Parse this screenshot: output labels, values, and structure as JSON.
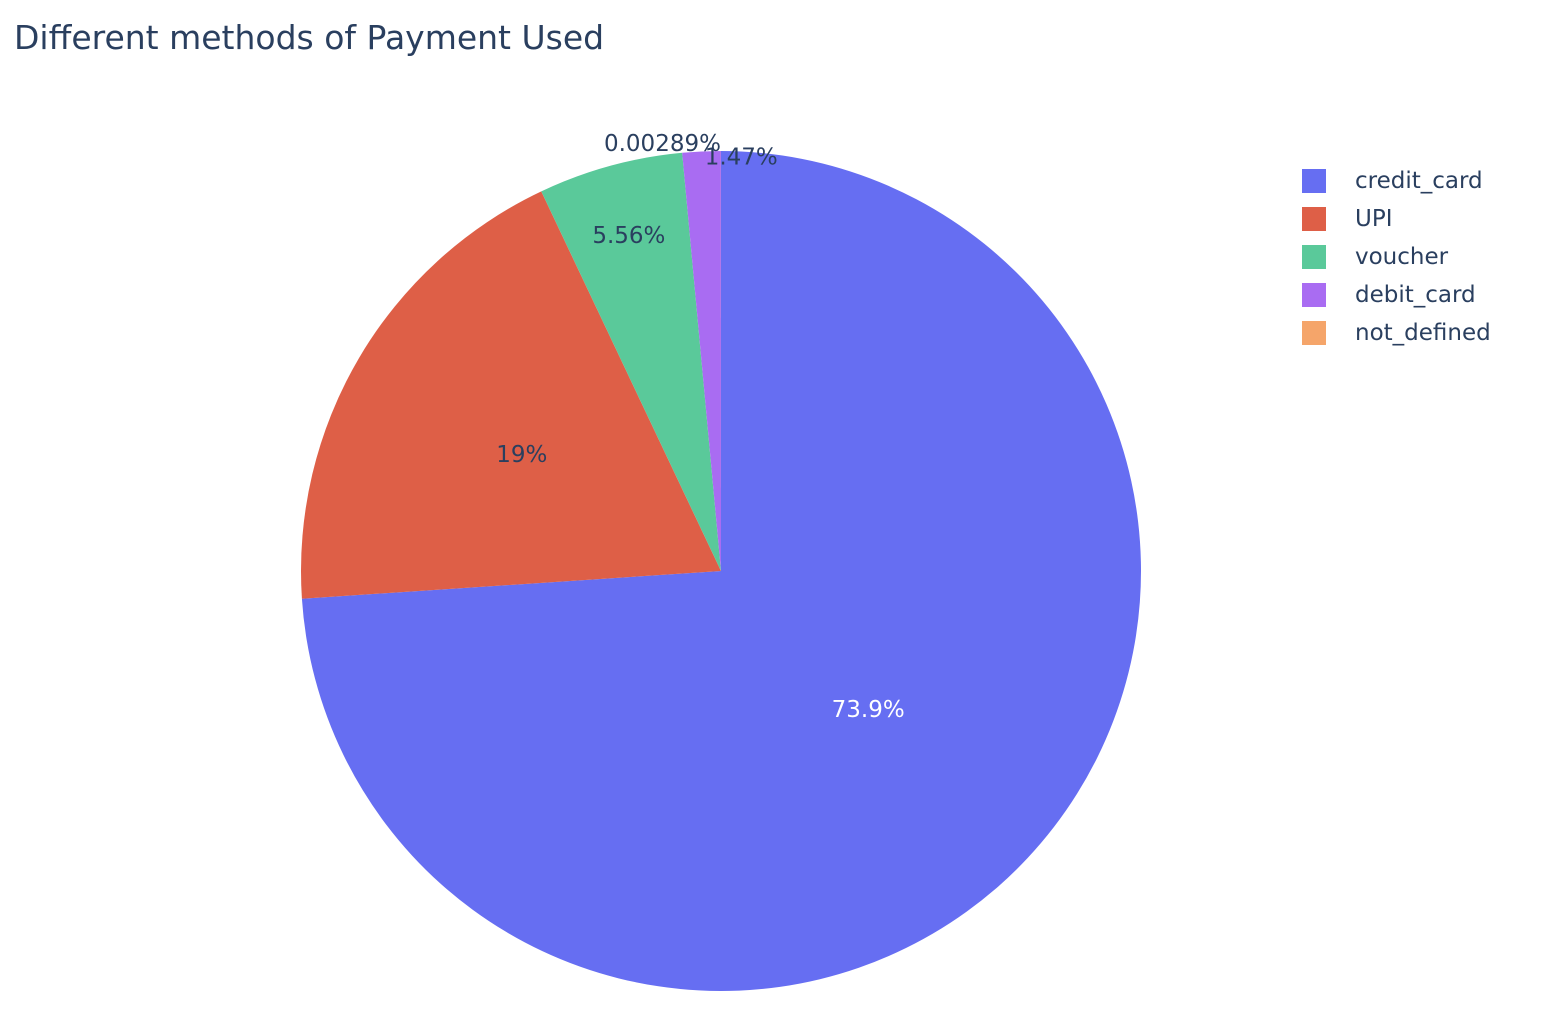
{
  "chart_data": {
    "type": "pie",
    "title": "Different methods of Payment Used",
    "legend_position": "top-right",
    "slices": [
      {
        "label": "credit_card",
        "percent": 73.9,
        "text": "73.9%",
        "color": "#636efa",
        "text_color": "#ffffff"
      },
      {
        "label": "UPI",
        "percent": 19.0,
        "text": "19%",
        "color": "#ef553b",
        "text_color": "#2a3f5f"
      },
      {
        "label": "voucher",
        "percent": 5.56,
        "text": "5.56%",
        "color": "#00cc96",
        "text_color": "#2a3f5f"
      },
      {
        "label": "debit_card",
        "percent": 1.47,
        "text": "1.47%",
        "color": "#ab63fa",
        "text_color": "#2a3f5f"
      },
      {
        "label": "not_defined",
        "percent": 0.00289,
        "text": "0.00289%",
        "color": "#ffa15a",
        "text_color": "#2a3f5f"
      }
    ]
  }
}
